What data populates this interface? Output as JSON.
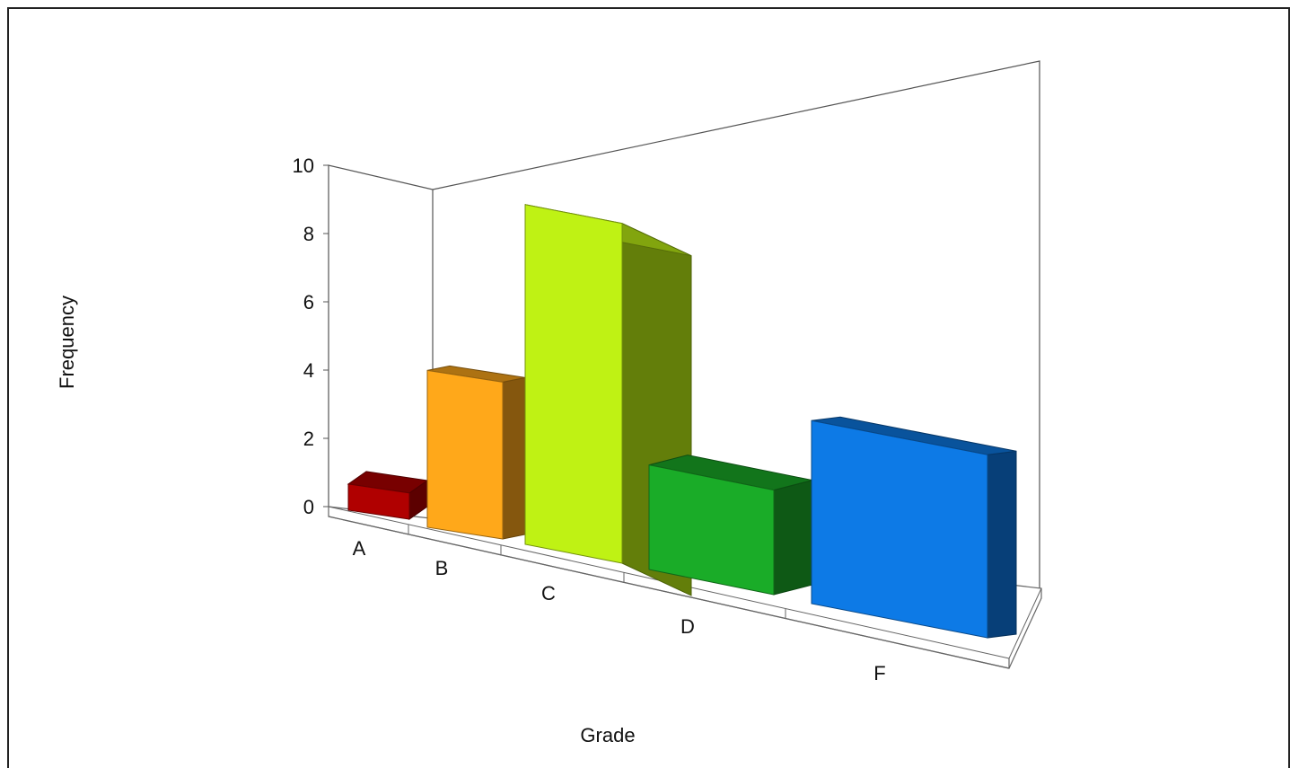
{
  "chart_data": {
    "type": "bar",
    "title": "",
    "xlabel": "Grade",
    "ylabel": "Frequency",
    "categories": [
      "A",
      "B",
      "C",
      "D",
      "F"
    ],
    "values": [
      1,
      6,
      13,
      4,
      7
    ],
    "yticks": [
      "0",
      "2",
      "4",
      "6",
      "8",
      "10"
    ],
    "style": "3d-perspective",
    "grid": false,
    "legend": "none",
    "colors": [
      "#b00000",
      "#ffa81a",
      "#bff214",
      "#1aac28",
      "#0d7ae6"
    ]
  }
}
